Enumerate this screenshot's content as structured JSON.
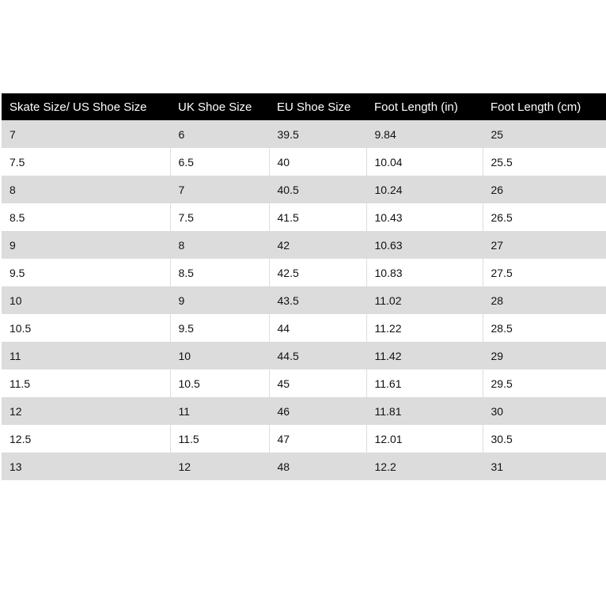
{
  "table": {
    "headers": [
      "Skate Size/ US Shoe Size",
      "UK Shoe Size",
      "EU Shoe Size",
      "Foot Length (in)",
      "Foot Length (cm)"
    ],
    "rows": [
      [
        "7",
        "6",
        "39.5",
        "9.84",
        "25"
      ],
      [
        "7.5",
        "6.5",
        "40",
        "10.04",
        "25.5"
      ],
      [
        "8",
        "7",
        "40.5",
        "10.24",
        "26"
      ],
      [
        "8.5",
        "7.5",
        "41.5",
        "10.43",
        "26.5"
      ],
      [
        "9",
        "8",
        "42",
        "10.63",
        "27"
      ],
      [
        "9.5",
        "8.5",
        "42.5",
        "10.83",
        "27.5"
      ],
      [
        "10",
        "9",
        "43.5",
        "11.02",
        "28"
      ],
      [
        "10.5",
        "9.5",
        "44",
        "11.22",
        "28.5"
      ],
      [
        "11",
        "10",
        "44.5",
        "11.42",
        "29"
      ],
      [
        "11.5",
        "10.5",
        "45",
        "11.61",
        "29.5"
      ],
      [
        "12",
        "11",
        "46",
        "11.81",
        "30"
      ],
      [
        "12.5",
        "11.5",
        "47",
        "12.01",
        "30.5"
      ],
      [
        "13",
        "12",
        "48",
        "12.2",
        "31"
      ]
    ]
  }
}
